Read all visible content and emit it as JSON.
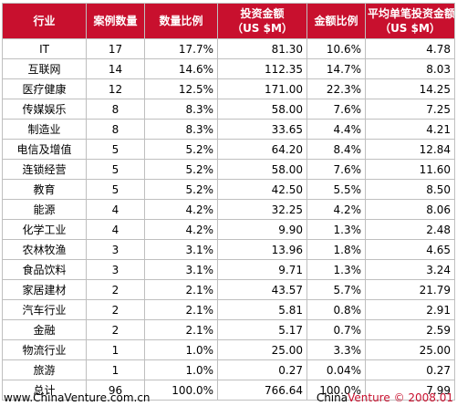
{
  "table": {
    "headers": [
      "行业",
      "案例数量",
      "数量比例",
      "投资金额\n（US $M）",
      "金额比例",
      "平均单笔投资金额\n（US $M）"
    ],
    "rows": [
      [
        "IT",
        "17",
        "17.7%",
        "81.30",
        "10.6%",
        "4.78"
      ],
      [
        "互联网",
        "14",
        "14.6%",
        "112.35",
        "14.7%",
        "8.03"
      ],
      [
        "医疗健康",
        "12",
        "12.5%",
        "171.00",
        "22.3%",
        "14.25"
      ],
      [
        "传媒娱乐",
        "8",
        "8.3%",
        "58.00",
        "7.6%",
        "7.25"
      ],
      [
        "制造业",
        "8",
        "8.3%",
        "33.65",
        "4.4%",
        "4.21"
      ],
      [
        "电信及增值",
        "5",
        "5.2%",
        "64.20",
        "8.4%",
        "12.84"
      ],
      [
        "连锁经营",
        "5",
        "5.2%",
        "58.00",
        "7.6%",
        "11.60"
      ],
      [
        "教育",
        "5",
        "5.2%",
        "42.50",
        "5.5%",
        "8.50"
      ],
      [
        "能源",
        "4",
        "4.2%",
        "32.25",
        "4.2%",
        "8.06"
      ],
      [
        "化学工业",
        "4",
        "4.2%",
        "9.90",
        "1.3%",
        "2.48"
      ],
      [
        "农林牧渔",
        "3",
        "3.1%",
        "13.96",
        "1.8%",
        "4.65"
      ],
      [
        "食品饮料",
        "3",
        "3.1%",
        "9.71",
        "1.3%",
        "3.24"
      ],
      [
        "家居建材",
        "2",
        "2.1%",
        "43.57",
        "5.7%",
        "21.79"
      ],
      [
        "汽车行业",
        "2",
        "2.1%",
        "5.81",
        "0.8%",
        "2.91"
      ],
      [
        "金融",
        "2",
        "2.1%",
        "5.17",
        "0.7%",
        "2.59"
      ],
      [
        "物流行业",
        "1",
        "1.0%",
        "25.00",
        "3.3%",
        "25.00"
      ],
      [
        "旅游",
        "1",
        "1.0%",
        "0.27",
        "0.04%",
        "0.27"
      ],
      [
        "总计",
        "96",
        "100.0%",
        "766.64",
        "100.0%",
        "7.99"
      ]
    ]
  },
  "footer": {
    "site": "www.ChinaVenture.com.cn",
    "brand_china": "China",
    "brand_venture": "Venture",
    "copyright": "© 2008.01"
  },
  "colors": {
    "header_bg": "#c8102e",
    "accent": "#c8102e"
  }
}
